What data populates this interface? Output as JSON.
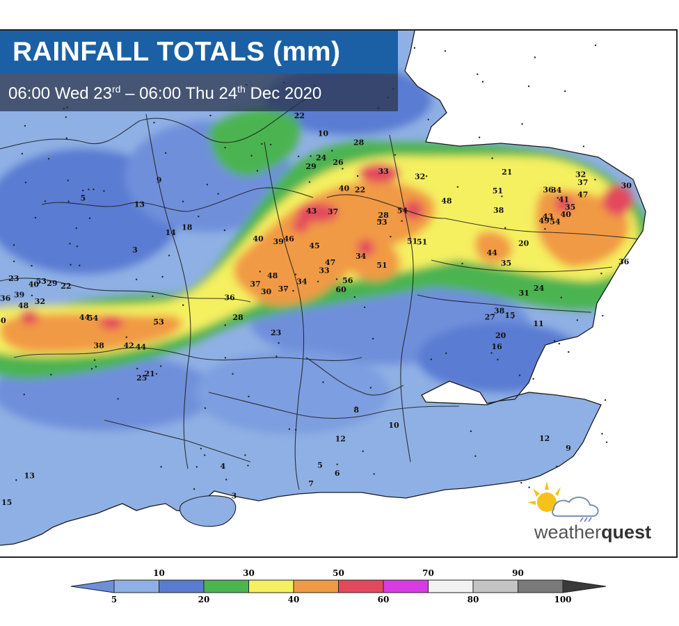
{
  "title": "RAINFALL TOTALS (mm)",
  "subtitle": {
    "start_time": "06:00 Wed 23",
    "start_suffix": "rd",
    "separator": " – ",
    "end_time": "06:00 Thu 24",
    "end_suffix": "th",
    "end_rest": " Dec 2020"
  },
  "brand": {
    "prefix": "weather",
    "suffix": "quest"
  },
  "legend": {
    "upper_labels": [
      "10",
      "30",
      "50",
      "70",
      "90"
    ],
    "lower_labels": [
      "5",
      "20",
      "40",
      "60",
      "80",
      "100"
    ],
    "bands": [
      {
        "range": "5-10",
        "color": "#8fb0e4"
      },
      {
        "range": "10-20",
        "color": "#5a7bd2"
      },
      {
        "range": "20-30",
        "color": "#4cb451"
      },
      {
        "range": "30-40",
        "color": "#f4f060"
      },
      {
        "range": "40-50",
        "color": "#f19a45"
      },
      {
        "range": "50-60",
        "color": "#e3495d"
      },
      {
        "range": "60-70",
        "color": "#d83be4"
      },
      {
        "range": "70-80",
        "color": "#f2f2f2"
      },
      {
        "range": "80-90",
        "color": "#c4c4c4"
      },
      {
        "range": "90-100",
        "color": "#7a7a7a"
      }
    ],
    "under_color": "#6d8fd8",
    "over_color": "#3a3a3a"
  },
  "colors": {
    "sea": "#ffffff",
    "low": "#8fb0e4",
    "mid_low": "#5a7bd2",
    "band_20": "#4cb451",
    "band_30": "#f4f060",
    "band_40": "#f19a45",
    "band_50": "#e3495d",
    "title_bg": "#1b60a4"
  },
  "map_values": [
    {
      "v": "54",
      "region": "Norfolk"
    },
    {
      "v": "51",
      "region": "Norfolk"
    },
    {
      "v": "43",
      "region": "Norfolk"
    },
    {
      "v": "44",
      "region": "Norfolk"
    },
    {
      "v": "35",
      "region": "Norfolk"
    },
    {
      "v": "20",
      "region": "Norfolk"
    },
    {
      "v": "32",
      "region": "Norfolk"
    },
    {
      "v": "34",
      "region": "Norfolk"
    },
    {
      "v": "37",
      "region": "Norfolk"
    },
    {
      "v": "40",
      "region": "Norfolk"
    },
    {
      "v": "21",
      "region": "Norfolk"
    },
    {
      "v": "36",
      "region": "Norfolk"
    },
    {
      "v": "38",
      "region": "Norfolk"
    },
    {
      "v": "30",
      "region": "Norfolk"
    },
    {
      "v": "49",
      "region": "Norfolk"
    },
    {
      "v": "47",
      "region": "Norfolk"
    },
    {
      "v": "35",
      "region": "Norfolk"
    },
    {
      "v": "36",
      "region": "Norfolk"
    },
    {
      "v": "41",
      "region": "Norfolk"
    },
    {
      "v": "38",
      "region": "Suffolk"
    },
    {
      "v": "31",
      "region": "Suffolk"
    },
    {
      "v": "27",
      "region": "Suffolk"
    },
    {
      "v": "15",
      "region": "Suffolk"
    },
    {
      "v": "24",
      "region": "Suffolk"
    },
    {
      "v": "54",
      "region": "Cambs"
    },
    {
      "v": "51",
      "region": "Cambs"
    },
    {
      "v": "40",
      "region": "Cambs"
    },
    {
      "v": "33",
      "region": "Cambs"
    },
    {
      "v": "37",
      "region": "Cambs"
    },
    {
      "v": "51",
      "region": "Cambs"
    },
    {
      "v": "48",
      "region": "Cambs"
    },
    {
      "v": "53",
      "region": "Cambs"
    },
    {
      "v": "51",
      "region": "Cambs"
    },
    {
      "v": "28",
      "region": "Cambs"
    },
    {
      "v": "22",
      "region": "Cambs"
    },
    {
      "v": "32",
      "region": "Cambs"
    },
    {
      "v": "34",
      "region": "Cambs"
    },
    {
      "v": "60",
      "region": "Northants"
    },
    {
      "v": "56",
      "region": "Northants"
    },
    {
      "v": "47",
      "region": "Northants"
    },
    {
      "v": "43",
      "region": "Northants"
    },
    {
      "v": "46",
      "region": "Northants"
    },
    {
      "v": "39",
      "region": "Northants"
    },
    {
      "v": "33",
      "region": "Northants"
    },
    {
      "v": "37",
      "region": "Northants"
    },
    {
      "v": "40",
      "region": "Northants"
    },
    {
      "v": "45",
      "region": "Northants"
    },
    {
      "v": "30",
      "region": "Northants"
    },
    {
      "v": "34",
      "region": "Northants"
    },
    {
      "v": "37",
      "region": "Warks"
    },
    {
      "v": "36",
      "region": "Warks"
    },
    {
      "v": "48",
      "region": "Warks"
    },
    {
      "v": "28",
      "region": "Oxon"
    },
    {
      "v": "23",
      "region": "Oxon"
    },
    {
      "v": "44",
      "region": "Glos"
    },
    {
      "v": "38",
      "region": "Glos"
    },
    {
      "v": "54",
      "region": "Glos"
    },
    {
      "v": "44",
      "region": "Glos"
    },
    {
      "v": "42",
      "region": "Glos"
    },
    {
      "v": "53",
      "region": "Glos"
    },
    {
      "v": "53",
      "region": "Wales"
    },
    {
      "v": "48",
      "region": "Wales"
    },
    {
      "v": "36",
      "region": "Wales"
    },
    {
      "v": "39",
      "region": "Wales"
    },
    {
      "v": "22",
      "region": "Wales"
    },
    {
      "v": "23",
      "region": "Wales"
    },
    {
      "v": "29",
      "region": "Wales"
    },
    {
      "v": "40",
      "region": "Wales"
    },
    {
      "v": "32",
      "region": "Wales"
    },
    {
      "v": "30",
      "region": "Wales"
    },
    {
      "v": "21",
      "region": "Wilts"
    },
    {
      "v": "25",
      "region": "Wilts"
    },
    {
      "v": "10",
      "region": "London"
    },
    {
      "v": "8",
      "region": "London"
    },
    {
      "v": "12",
      "region": "London"
    },
    {
      "v": "5",
      "region": "Sussex"
    },
    {
      "v": "6",
      "region": "Sussex"
    },
    {
      "v": "7",
      "region": "Sussex"
    },
    {
      "v": "4",
      "region": "Hants"
    },
    {
      "v": "3",
      "region": "Hants"
    },
    {
      "v": "13",
      "region": "Devon"
    },
    {
      "v": "15",
      "region": "Devon"
    },
    {
      "v": "12",
      "region": "Kent"
    },
    {
      "v": "9",
      "region": "Kent"
    },
    {
      "v": "16",
      "region": "Essex"
    },
    {
      "v": "11",
      "region": "Essex"
    },
    {
      "v": "20",
      "region": "Essex"
    },
    {
      "v": "26",
      "region": "Lincs"
    },
    {
      "v": "29",
      "region": "Lincs"
    },
    {
      "v": "24",
      "region": "Lincs"
    },
    {
      "v": "22",
      "region": "Lincs"
    },
    {
      "v": "28",
      "region": "Lincs"
    },
    {
      "v": "10",
      "region": "Lincs"
    },
    {
      "v": "14",
      "region": "Midlands"
    },
    {
      "v": "13",
      "region": "Midlands"
    },
    {
      "v": "18",
      "region": "Midlands"
    },
    {
      "v": "5",
      "region": "Midlands"
    },
    {
      "v": "3",
      "region": "Midlands"
    },
    {
      "v": "9",
      "region": "Midlands"
    }
  ]
}
